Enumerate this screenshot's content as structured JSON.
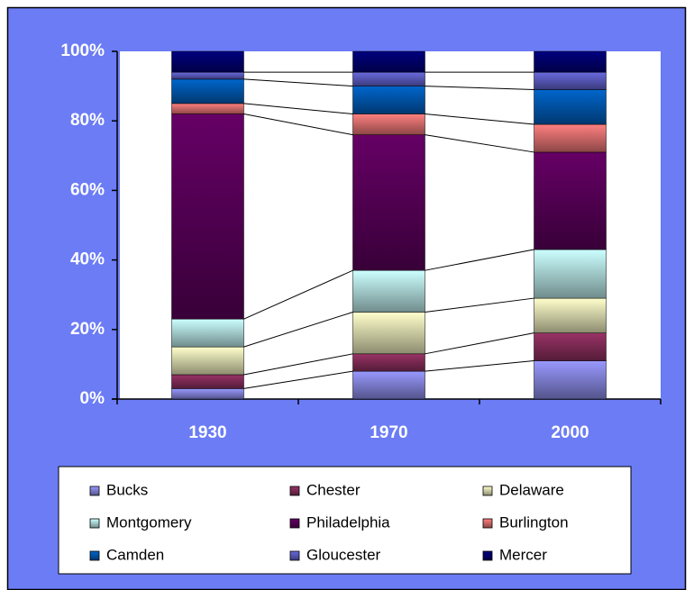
{
  "chart_data": {
    "type": "stacked_bar_percent",
    "categories": [
      "1930",
      "1970",
      "2000"
    ],
    "series": [
      {
        "name": "Bucks",
        "color": "#9999ff",
        "values": [
          3,
          8,
          11
        ]
      },
      {
        "name": "Chester",
        "color": "#993366",
        "values": [
          4,
          5,
          8
        ]
      },
      {
        "name": "Delaware",
        "color": "#ffffcc",
        "values": [
          8,
          12,
          10
        ]
      },
      {
        "name": "Montgomery",
        "color": "#ccffff",
        "values": [
          8,
          12,
          14
        ]
      },
      {
        "name": "Philadelphia",
        "color": "#660066",
        "values": [
          59,
          39,
          28
        ]
      },
      {
        "name": "Burlington",
        "color": "#ff8080",
        "values": [
          3,
          6,
          8
        ]
      },
      {
        "name": "Camden",
        "color": "#0066cc",
        "values": [
          7,
          8,
          10
        ]
      },
      {
        "name": "Gloucester",
        "color": "#6a6ae0",
        "values": [
          2,
          4,
          5
        ]
      },
      {
        "name": "Mercer",
        "color": "#000080",
        "values": [
          6,
          6,
          6
        ]
      }
    ],
    "ylim": [
      0,
      100
    ],
    "yticks": [
      {
        "value": 0,
        "label": "0%"
      },
      {
        "value": 20,
        "label": "20%"
      },
      {
        "value": 40,
        "label": "40%"
      },
      {
        "value": 60,
        "label": "60%"
      },
      {
        "value": 80,
        "label": "80%"
      },
      {
        "value": 100,
        "label": "100%"
      }
    ],
    "series_lines": true
  }
}
